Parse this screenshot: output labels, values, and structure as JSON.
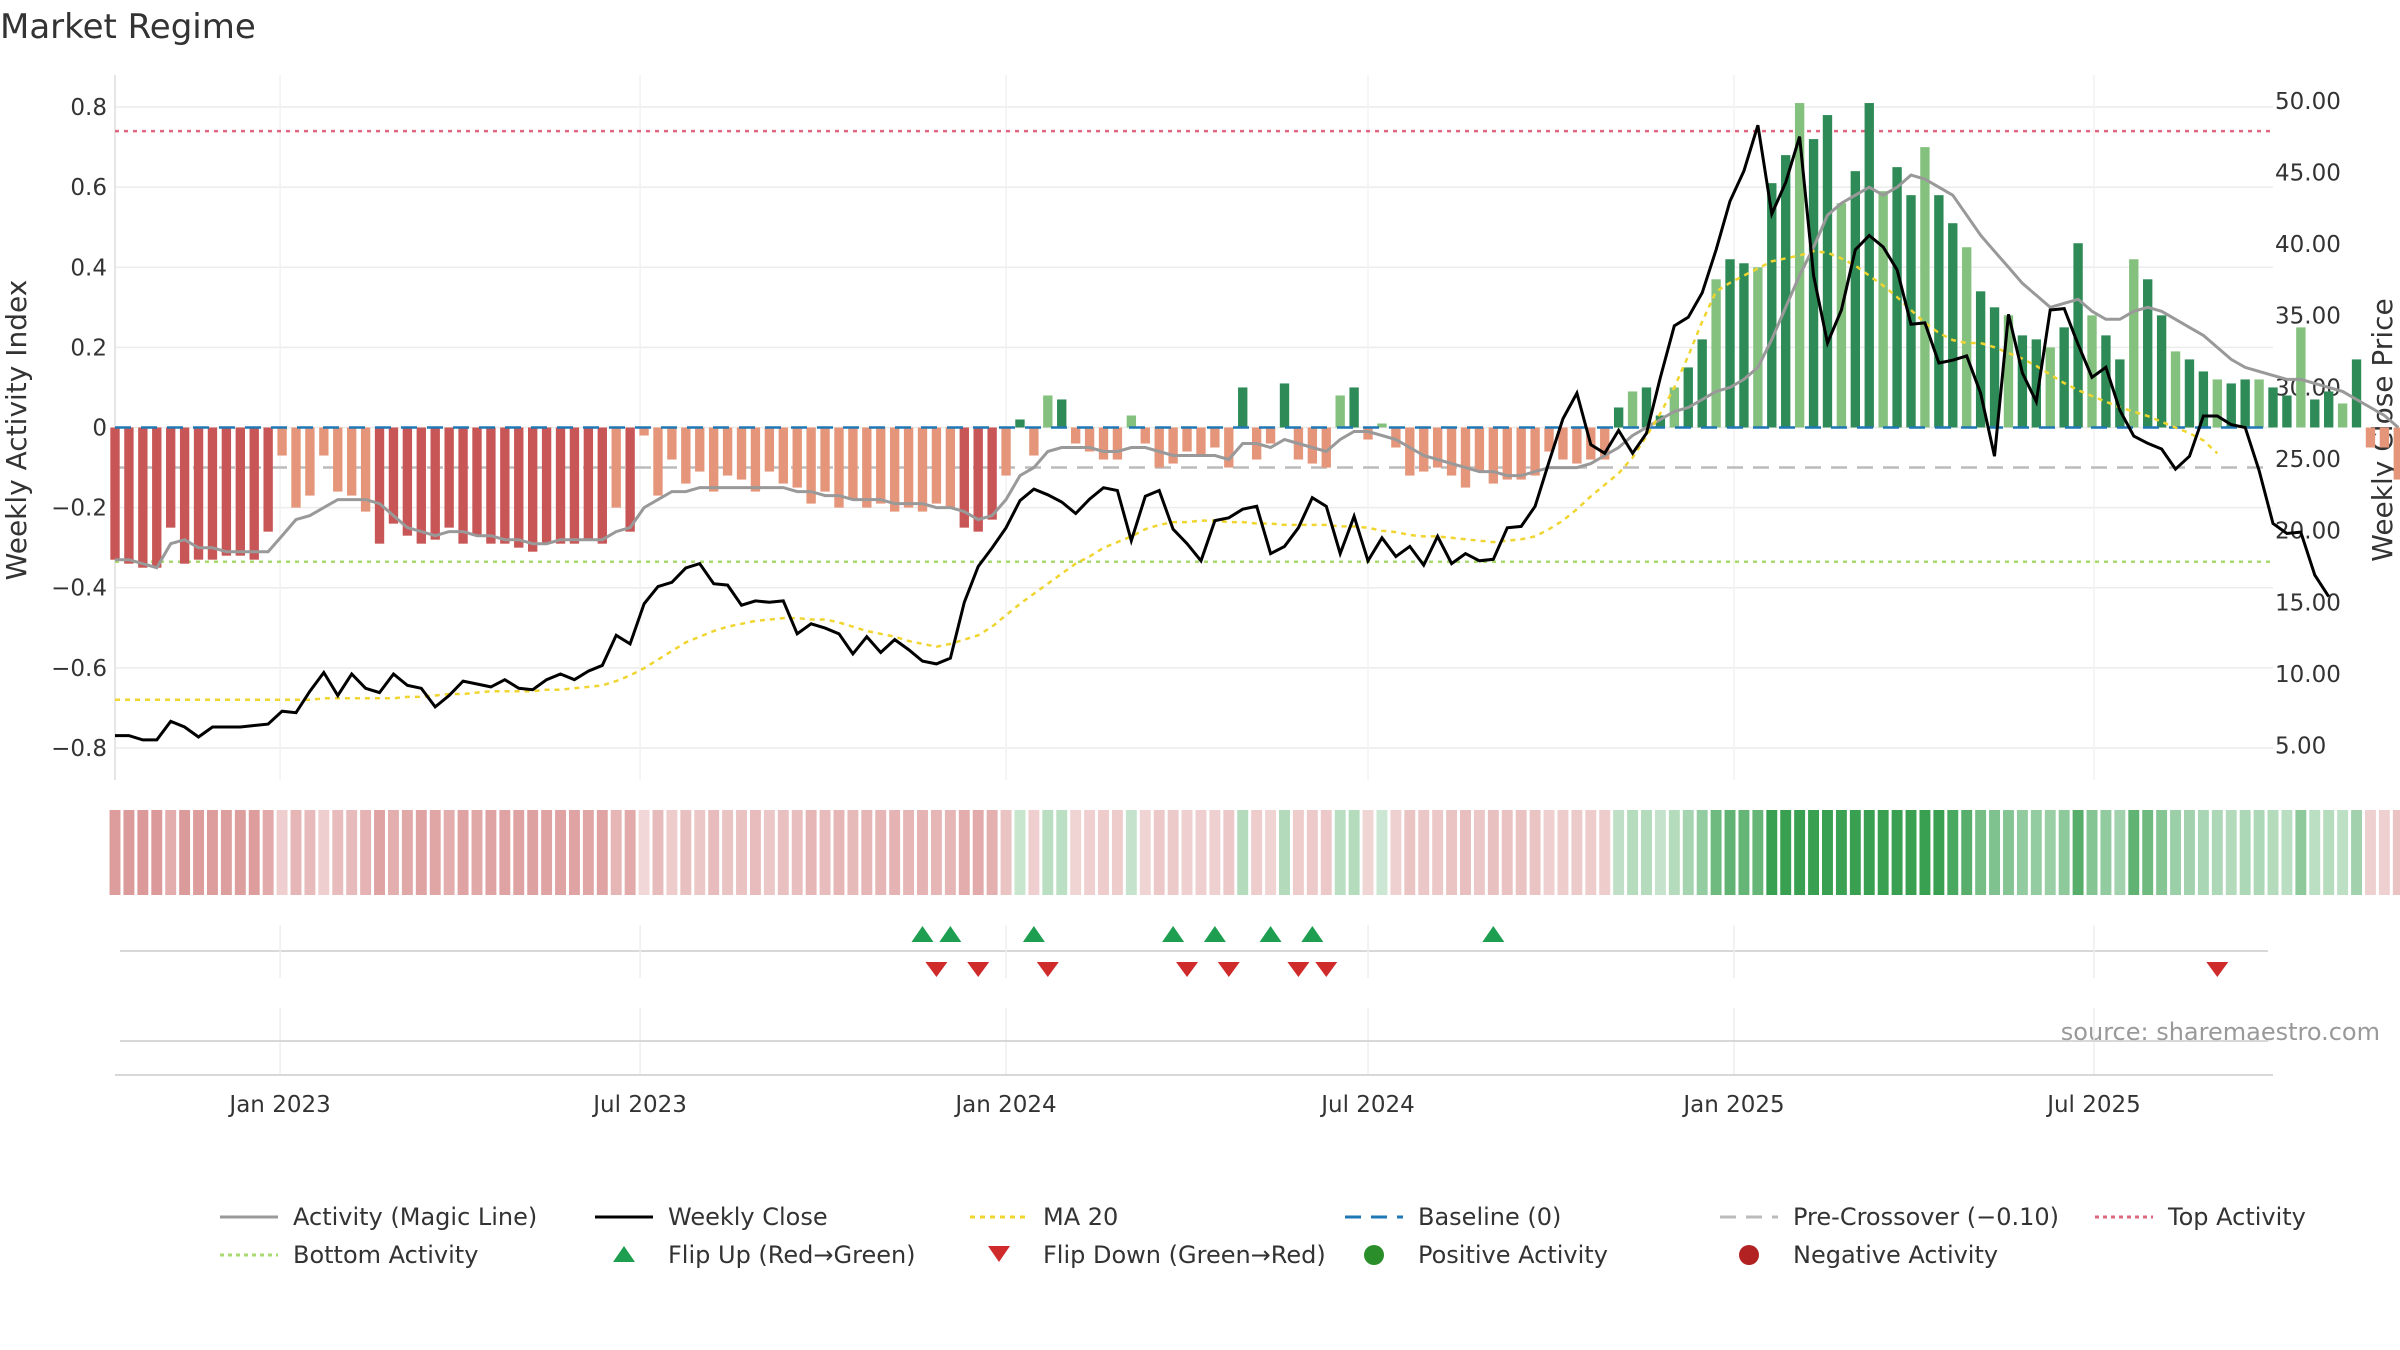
{
  "title": "Market Regime",
  "source": "source: sharemaestro.com",
  "colors": {
    "pos_dark": "#2e8b57",
    "pos_light": "#85c17e",
    "neg_dark": "#c85656",
    "neg_light": "#e5967a",
    "magic_line": "#999999",
    "close_line": "#000000",
    "ma_line": "#f0d530",
    "baseline": "#1f77b4",
    "pre_crossover": "#bbbbbb",
    "top_activity": "#e06680",
    "bottom_activity": "#a8d96f",
    "flip_up": "#1e9e50",
    "flip_down": "#d02b2b",
    "positive_dot": "#2a8f2a",
    "negative_dot": "#b22222"
  },
  "chart_data": {
    "type": "bar",
    "x_type": "date",
    "x_range": [
      "2022-10-10",
      "2025-09-29"
    ],
    "x_ticks": [
      {
        "date": "2023-01-01",
        "label": "Jan 2023"
      },
      {
        "date": "2023-07-01",
        "label": "Jul 2023"
      },
      {
        "date": "2024-01-01",
        "label": "Jan 2024"
      },
      {
        "date": "2024-07-01",
        "label": "Jul 2024"
      },
      {
        "date": "2025-01-01",
        "label": "Jan 2025"
      },
      {
        "date": "2025-07-01",
        "label": "Jul 2025"
      }
    ],
    "ylabel": "Weekly Activity Index",
    "y2label": "Weekly Close Price",
    "ylim": [
      -0.88,
      0.88
    ],
    "y2lim": [
      2.6,
      51.8
    ],
    "y_ticks": [
      "0.8",
      "0.6",
      "0.4",
      "0.2",
      "0",
      "−0.2",
      "−0.4",
      "−0.6",
      "−0.8"
    ],
    "y_tick_values": [
      0.8,
      0.6,
      0.4,
      0.2,
      0,
      -0.2,
      -0.4,
      -0.6,
      -0.8
    ],
    "y2_ticks": [
      "50.00",
      "45.00",
      "40.00",
      "35.00",
      "30.00",
      "25.00",
      "20.00",
      "15.00",
      "10.00",
      "5.00"
    ],
    "y2_tick_values": [
      50,
      45,
      40,
      35,
      30,
      25,
      20,
      15,
      10,
      5
    ],
    "reference_lines": {
      "baseline": 0,
      "pre_crossover": -0.1,
      "top_activity": 0.74,
      "bottom_activity": -0.335
    },
    "activity": [
      -0.33,
      -0.34,
      -0.35,
      -0.35,
      -0.25,
      -0.34,
      -0.33,
      -0.33,
      -0.32,
      -0.32,
      -0.33,
      -0.26,
      -0.07,
      -0.2,
      -0.17,
      -0.07,
      -0.16,
      -0.17,
      -0.21,
      -0.29,
      -0.24,
      -0.27,
      -0.29,
      -0.28,
      -0.25,
      -0.29,
      -0.27,
      -0.29,
      -0.29,
      -0.3,
      -0.31,
      -0.29,
      -0.29,
      -0.29,
      -0.28,
      -0.29,
      -0.2,
      -0.26,
      -0.02,
      -0.17,
      -0.08,
      -0.14,
      -0.11,
      -0.16,
      -0.12,
      -0.13,
      -0.16,
      -0.11,
      -0.14,
      -0.15,
      -0.19,
      -0.16,
      -0.2,
      -0.18,
      -0.2,
      -0.19,
      -0.21,
      -0.2,
      -0.21,
      -0.19,
      -0.2,
      -0.25,
      -0.26,
      -0.23,
      -0.12,
      0.02,
      -0.07,
      0.08,
      0.07,
      -0.04,
      -0.06,
      -0.08,
      -0.08,
      0.03,
      -0.04,
      -0.1,
      -0.09,
      -0.06,
      -0.07,
      -0.05,
      -0.1,
      0.1,
      -0.08,
      -0.04,
      0.11,
      -0.08,
      -0.09,
      -0.1,
      0.08,
      0.1,
      -0.03,
      0.01,
      -0.05,
      -0.12,
      -0.11,
      -0.1,
      -0.12,
      -0.15,
      -0.11,
      -0.14,
      -0.13,
      -0.13,
      -0.12,
      -0.06,
      -0.08,
      -0.09,
      -0.08,
      -0.08,
      0.05,
      0.09,
      0.1,
      0.03,
      0.1,
      0.15,
      0.22,
      0.37,
      0.42,
      0.41,
      0.4,
      0.61,
      0.68,
      0.81,
      0.72,
      0.78,
      0.56,
      0.64,
      0.81,
      0.59,
      0.65,
      0.58,
      0.7,
      0.58,
      0.51,
      0.45,
      0.34,
      0.3,
      0.28,
      0.23,
      0.22,
      0.2,
      0.25,
      0.46,
      0.28,
      0.23,
      0.17,
      0.42,
      0.37,
      0.28,
      0.19,
      0.17,
      0.14,
      0.12,
      0.11,
      0.12,
      0.12,
      0.1,
      0.08,
      0.25,
      0.07,
      0.09,
      0.06,
      0.17,
      -0.05,
      -0.05,
      -0.13,
      -0.14
    ],
    "magic_line": [
      -0.33,
      -0.33,
      -0.34,
      -0.35,
      -0.29,
      -0.28,
      -0.3,
      -0.3,
      -0.31,
      -0.31,
      -0.31,
      -0.31,
      -0.27,
      -0.23,
      -0.22,
      -0.2,
      -0.18,
      -0.18,
      -0.18,
      -0.19,
      -0.22,
      -0.25,
      -0.26,
      -0.27,
      -0.26,
      -0.26,
      -0.27,
      -0.27,
      -0.28,
      -0.28,
      -0.29,
      -0.29,
      -0.28,
      -0.28,
      -0.28,
      -0.28,
      -0.26,
      -0.25,
      -0.2,
      -0.18,
      -0.16,
      -0.16,
      -0.15,
      -0.15,
      -0.15,
      -0.15,
      -0.15,
      -0.15,
      -0.15,
      -0.16,
      -0.16,
      -0.17,
      -0.17,
      -0.18,
      -0.18,
      -0.18,
      -0.19,
      -0.19,
      -0.19,
      -0.2,
      -0.2,
      -0.21,
      -0.23,
      -0.22,
      -0.18,
      -0.12,
      -0.1,
      -0.06,
      -0.05,
      -0.05,
      -0.05,
      -0.06,
      -0.06,
      -0.05,
      -0.05,
      -0.06,
      -0.07,
      -0.07,
      -0.07,
      -0.07,
      -0.08,
      -0.04,
      -0.04,
      -0.05,
      -0.03,
      -0.04,
      -0.05,
      -0.06,
      -0.03,
      -0.01,
      -0.01,
      -0.02,
      -0.03,
      -0.05,
      -0.07,
      -0.08,
      -0.09,
      -0.1,
      -0.11,
      -0.11,
      -0.12,
      -0.12,
      -0.11,
      -0.1,
      -0.1,
      -0.1,
      -0.09,
      -0.07,
      -0.05,
      -0.02,
      0.0,
      0.02,
      0.04,
      0.05,
      0.07,
      0.09,
      0.1,
      0.12,
      0.15,
      0.22,
      0.3,
      0.38,
      0.45,
      0.53,
      0.56,
      0.58,
      0.6,
      0.58,
      0.6,
      0.63,
      0.62,
      0.6,
      0.58,
      0.53,
      0.48,
      0.44,
      0.4,
      0.36,
      0.33,
      0.3,
      0.31,
      0.32,
      0.29,
      0.27,
      0.27,
      0.29,
      0.3,
      0.29,
      0.27,
      0.25,
      0.23,
      0.2,
      0.17,
      0.15,
      0.14,
      0.13,
      0.12,
      0.12,
      0.11,
      0.1,
      0.09,
      0.07,
      0.05,
      0.03,
      0.0
    ],
    "weekly_close": [
      5.7,
      5.7,
      5.4,
      5.4,
      6.7,
      6.3,
      5.6,
      6.3,
      6.3,
      6.3,
      6.4,
      6.5,
      7.4,
      7.3,
      8.8,
      10.1,
      8.5,
      10.0,
      9.0,
      8.7,
      10.0,
      9.2,
      9.0,
      7.7,
      8.5,
      9.5,
      9.3,
      9.1,
      9.6,
      9.0,
      8.9,
      9.6,
      10.0,
      9.6,
      10.2,
      10.6,
      12.7,
      12.1,
      14.9,
      16.1,
      16.4,
      17.4,
      17.7,
      16.3,
      16.2,
      14.8,
      15.1,
      15.0,
      15.1,
      12.8,
      13.5,
      13.2,
      12.8,
      11.4,
      12.6,
      11.5,
      12.4,
      11.7,
      10.9,
      10.7,
      11.1,
      15.0,
      17.5,
      18.8,
      20.2,
      22.1,
      22.9,
      22.5,
      22.0,
      21.2,
      22.2,
      23.0,
      22.8,
      19.3,
      22.4,
      22.8,
      20.1,
      19.1,
      17.9,
      20.7,
      20.9,
      21.5,
      21.7,
      18.4,
      18.9,
      20.2,
      22.3,
      21.7,
      18.4,
      21.0,
      17.9,
      19.5,
      18.2,
      18.9,
      17.6,
      19.6,
      17.7,
      18.4,
      17.9,
      18.0,
      20.2,
      20.3,
      21.7,
      24.8,
      27.8,
      29.6,
      26.0,
      25.4,
      27.0,
      25.4,
      26.8,
      30.7,
      34.3,
      34.9,
      36.6,
      39.6,
      43.0,
      45.1,
      48.3,
      42.1,
      44.3,
      47.5,
      37.8,
      33.1,
      35.4,
      39.6,
      40.6,
      39.8,
      38.2,
      34.4,
      34.5,
      31.7,
      31.9,
      32.2,
      29.6,
      25.2,
      35.1,
      31.0,
      29.0,
      35.4,
      35.5,
      33.0,
      30.7,
      31.4,
      28.4,
      26.6,
      26.1,
      25.7,
      24.3,
      25.2,
      28.0,
      28.0,
      27.4,
      27.2,
      24.2,
      20.5,
      19.8,
      19.9,
      16.9,
      15.4
    ],
    "ma20": [
      8.2,
      8.2,
      8.2,
      8.2,
      8.2,
      8.2,
      8.2,
      8.2,
      8.2,
      8.2,
      8.2,
      8.2,
      8.2,
      8.2,
      8.2,
      8.3,
      8.3,
      8.3,
      8.3,
      8.3,
      8.3,
      8.4,
      8.4,
      8.5,
      8.6,
      8.6,
      8.7,
      8.8,
      8.8,
      8.8,
      8.8,
      8.9,
      8.9,
      9.0,
      9.1,
      9.2,
      9.5,
      9.9,
      10.4,
      11.0,
      11.6,
      12.2,
      12.6,
      13.0,
      13.3,
      13.5,
      13.7,
      13.8,
      13.9,
      13.9,
      13.8,
      13.8,
      13.6,
      13.3,
      13.0,
      12.8,
      12.6,
      12.3,
      12.1,
      11.9,
      12.1,
      12.4,
      12.7,
      13.3,
      14.1,
      14.9,
      15.6,
      16.3,
      17.0,
      17.7,
      18.2,
      18.8,
      19.2,
      19.6,
      20.1,
      20.4,
      20.6,
      20.6,
      20.7,
      20.7,
      20.6,
      20.6,
      20.5,
      20.5,
      20.4,
      20.4,
      20.4,
      20.4,
      20.3,
      20.3,
      20.2,
      20.0,
      19.9,
      19.7,
      19.6,
      19.6,
      19.5,
      19.4,
      19.3,
      19.2,
      19.3,
      19.4,
      19.6,
      20.1,
      20.7,
      21.5,
      22.4,
      23.2,
      24.0,
      25.1,
      26.6,
      28.2,
      30.0,
      32.2,
      34.6,
      36.7,
      37.3,
      37.8,
      38.3,
      38.8,
      39.0,
      39.2,
      39.5,
      39.4,
      39.0,
      38.5,
      37.8,
      37.1,
      36.3,
      35.4,
      34.5,
      33.8,
      33.3,
      33.1,
      33.1,
      32.8,
      32.4,
      32.0,
      31.5,
      30.9,
      30.3,
      29.8,
      29.4,
      29.0,
      28.6,
      28.3,
      28.0,
      27.6,
      27.2,
      26.8,
      26.3,
      25.4
    ],
    "regime_strip": {
      "description": "weekly regime colour band",
      "values_source": "activity"
    },
    "flip_up_dates": [
      "2023-11-20",
      "2023-12-04",
      "2024-01-15",
      "2024-03-25",
      "2024-04-15",
      "2024-05-13",
      "2024-06-03",
      "2024-09-02"
    ],
    "flip_down_dates": [
      "2023-11-27",
      "2023-12-18",
      "2024-01-22",
      "2024-04-01",
      "2024-04-22",
      "2024-05-27",
      "2024-06-10",
      "2025-09-01"
    ]
  },
  "legend": [
    {
      "label": "Activity (Magic Line)",
      "kind": "line",
      "color": "#999999",
      "dash": ""
    },
    {
      "label": "Weekly Close",
      "kind": "line",
      "color": "#000000",
      "dash": ""
    },
    {
      "label": "MA 20",
      "kind": "line",
      "color": "#f0d530",
      "dash": "5,5"
    },
    {
      "label": "Baseline (0)",
      "kind": "line",
      "color": "#1f77b4",
      "dash": "16,10"
    },
    {
      "label": "Pre-Crossover (−0.10)",
      "kind": "line",
      "color": "#bbbbbb",
      "dash": "16,10"
    },
    {
      "label": "Top Activity",
      "kind": "line",
      "color": "#e06680",
      "dash": "4,4"
    },
    {
      "label": "Bottom Activity",
      "kind": "line",
      "color": "#a8d96f",
      "dash": "4,4"
    },
    {
      "label": "Flip Up (Red→Green)",
      "kind": "tri-up",
      "color": "#1e9e50"
    },
    {
      "label": "Flip Down (Green→Red)",
      "kind": "tri-down",
      "color": "#d02b2b"
    },
    {
      "label": "Positive Activity",
      "kind": "dot",
      "color": "#2a8f2a"
    },
    {
      "label": "Negative Activity",
      "kind": "dot",
      "color": "#b22222"
    }
  ]
}
